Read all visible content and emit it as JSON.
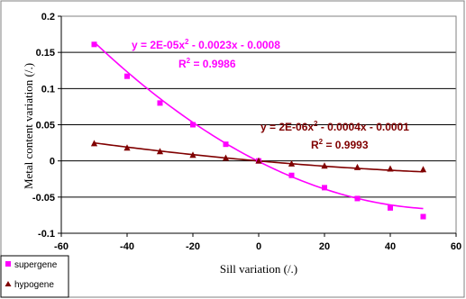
{
  "chart_data": {
    "type": "scatter",
    "xlabel": "Sill variation (/.)",
    "ylabel": "Metal content variation (/.)",
    "xlim": [
      -60,
      60
    ],
    "ylim": [
      -0.1,
      0.2
    ],
    "x_ticks": [
      "-60",
      "-40",
      "-20",
      "0",
      "20",
      "40",
      "60"
    ],
    "y_ticks": [
      "0.2",
      "0.15",
      "0.1",
      "0.05",
      "0",
      "-0.05",
      "-0.1"
    ],
    "x_tick_values": [
      -60,
      -40,
      -20,
      0,
      20,
      40,
      60
    ],
    "y_tick_values": [
      0.2,
      0.15,
      0.1,
      0.05,
      0,
      -0.05,
      -0.1
    ],
    "grid": "horizontal",
    "legend_position": "bottom-left",
    "series": [
      {
        "name": "supergene",
        "color": "#ff00ff",
        "marker": "square",
        "x": [
          -50,
          -40,
          -30,
          -20,
          -10,
          0,
          10,
          20,
          30,
          40,
          50
        ],
        "y": [
          0.161,
          0.117,
          0.08,
          0.05,
          0.023,
          0.0,
          -0.02,
          -0.037,
          -0.052,
          -0.065,
          -0.077
        ],
        "trendline": {
          "coefficients": [
            2e-05,
            -0.0023,
            -0.0008
          ],
          "equation_main": "y = 2E-05x",
          "equation_exp": "2",
          "equation_rest": " - 0.0023x - 0.0008",
          "r2_label": "R",
          "r2_exp": "2",
          "r2_value": " = 0.9986"
        }
      },
      {
        "name": "hypogene",
        "color": "#800000",
        "marker": "triangle",
        "x": [
          -50,
          -40,
          -30,
          -20,
          -10,
          0,
          10,
          20,
          30,
          40,
          50
        ],
        "y": [
          0.024,
          0.018,
          0.013,
          0.008,
          0.004,
          0.0,
          -0.004,
          -0.007,
          -0.009,
          -0.011,
          -0.012
        ],
        "trendline": {
          "coefficients": [
            2e-06,
            -0.0004,
            -0.0001
          ],
          "equation_main": "y = 2E-06x",
          "equation_exp": "2",
          "equation_rest": " - 0.0004x - 0.0001",
          "r2_label": "R",
          "r2_exp": "2",
          "r2_value": " = 0.9993"
        }
      }
    ]
  }
}
